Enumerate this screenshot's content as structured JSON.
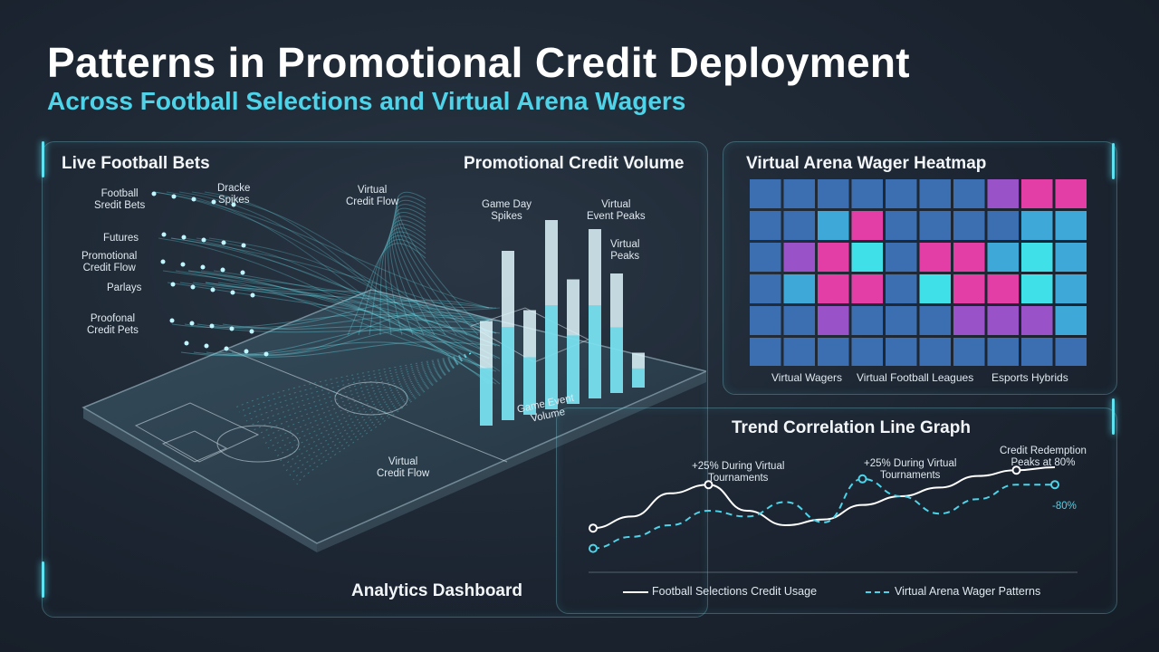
{
  "header": {
    "title": "Patterns in Promotional Credit Deployment",
    "subtitle": "Across Football Selections and Virtual Arena Wagers"
  },
  "colors": {
    "accent_cyan": "#4fd3e8",
    "magenta": "#e23ea6",
    "purple": "#9a52c8",
    "blue": "#3c6fb2",
    "dark_blue": "#2d4f82",
    "light_blue": "#3ea8d8"
  },
  "left_panel": {
    "title": "Live Football Bets",
    "footer": "Analytics Dashboard",
    "bet_types": [
      "Football\nSredit Bets",
      "Futures",
      "Promotional\nCredit Flow",
      "Parlays",
      "Proofonal\nCredit Pets"
    ],
    "flow_labels": {
      "spikes": "Dracke\nSpikes",
      "virtual_top": "Virtual\nCredit Flow",
      "virtual_bottom": "Virtual\nCredit Flow",
      "game_event": "Game Event\nVolume"
    }
  },
  "chart_data": [
    {
      "type": "bar",
      "title": "Promotional Credit Volume",
      "categories": [
        "",
        "",
        "",
        "",
        "",
        "",
        "",
        ""
      ],
      "values": [
        42,
        68,
        42,
        76,
        50,
        68,
        48,
        14
      ],
      "annotations": [
        "Game Day\nSpikes",
        "Virtual\nEvent Peaks",
        "Virtual\nPeaks"
      ],
      "ylim": [
        0,
        80
      ],
      "grid": false
    },
    {
      "type": "heatmap",
      "title": "Virtual Arena Wager Heatmap",
      "x_labels": [
        "Virtual Wagers",
        "Virtual Football Leagues",
        "Esports Hybrids"
      ],
      "rows": 6,
      "cols": 10,
      "cells": [
        [
          "blue",
          "blue",
          "blue",
          "blue",
          "blue",
          "blue",
          "blue",
          "purple",
          "magenta",
          "magenta"
        ],
        [
          "blue",
          "blue",
          "light_blue",
          "magenta",
          "blue",
          "blue",
          "blue",
          "blue",
          "light_blue",
          "light_blue"
        ],
        [
          "blue",
          "purple",
          "magenta",
          "cyan",
          "blue",
          "magenta",
          "magenta",
          "light_blue",
          "cyan",
          "light_blue"
        ],
        [
          "blue",
          "light_blue",
          "magenta",
          "magenta",
          "blue",
          "cyan",
          "magenta",
          "magenta",
          "cyan",
          "light_blue"
        ],
        [
          "blue",
          "blue",
          "purple",
          "blue",
          "blue",
          "blue",
          "purple",
          "purple",
          "purple",
          "light_blue"
        ],
        [
          "blue",
          "blue",
          "blue",
          "blue",
          "blue",
          "blue",
          "blue",
          "blue",
          "blue",
          "blue"
        ]
      ]
    },
    {
      "type": "line",
      "title": "Trend Correlation Line Graph",
      "x": [
        0,
        1,
        2,
        3,
        4,
        5,
        6,
        7,
        8,
        9,
        10,
        11,
        12
      ],
      "series": [
        {
          "name": "Football Selections Credit Usage",
          "style": "solid",
          "color": "#ffffff",
          "values": [
            28,
            36,
            52,
            58,
            40,
            30,
            34,
            44,
            50,
            56,
            64,
            68,
            70
          ]
        },
        {
          "name": "Virtual Arena Wager Patterns",
          "style": "dashed",
          "color": "#4fd3e8",
          "values": [
            14,
            22,
            30,
            40,
            36,
            46,
            32,
            62,
            50,
            38,
            48,
            58,
            58
          ]
        }
      ],
      "annotations": [
        "+25% During Virtual\nTournaments",
        "+25% During Virtual\nTournaments",
        "Credit Redemption\nPeaks at 80%",
        "-80%"
      ],
      "ylim": [
        0,
        80
      ],
      "grid": false
    }
  ]
}
